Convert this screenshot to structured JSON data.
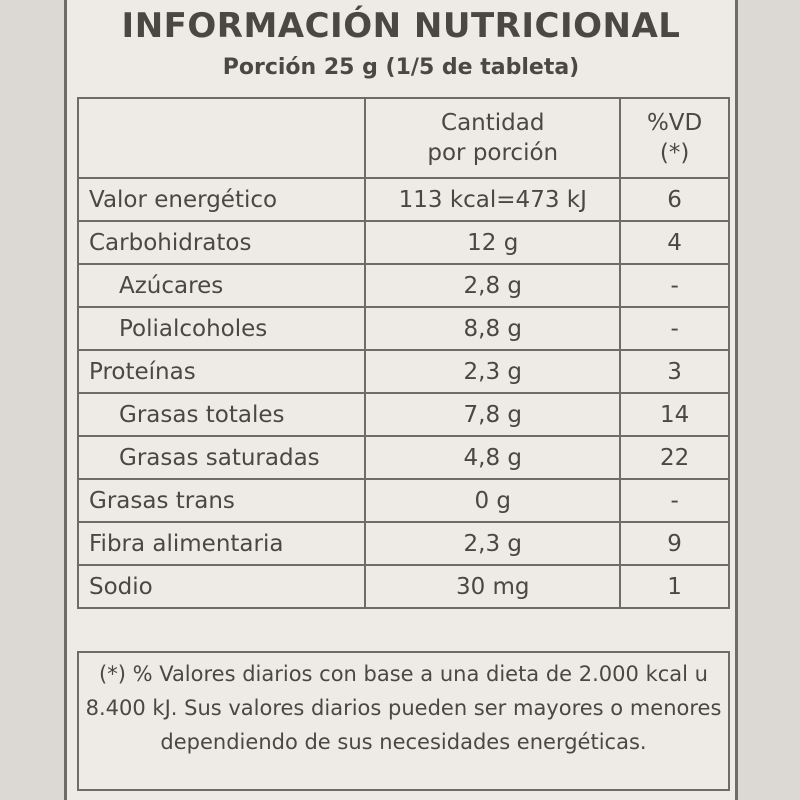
{
  "label": {
    "title": "INFORMACIÓN NUTRICIONAL",
    "serving": "Porción 25 g (1/5 de tableta)",
    "headers": {
      "amount_line1": "Cantidad",
      "amount_line2": "por porción",
      "dv_line1": "%VD",
      "dv_line2": "(*)"
    },
    "rows": [
      {
        "name": "Valor energético",
        "amount": "113 kcal=473 kJ",
        "dv": "6"
      },
      {
        "name": "Carbohidratos",
        "amount": "12 g",
        "dv": "4"
      },
      {
        "name": "Azúcares",
        "amount": "2,8 g",
        "dv": "-"
      },
      {
        "name": "Polialcoholes",
        "amount": "8,8 g",
        "dv": "-"
      },
      {
        "name": "Proteínas",
        "amount": "2,3 g",
        "dv": "3"
      },
      {
        "name": "Grasas totales",
        "amount": "7,8 g",
        "dv": "14"
      },
      {
        "name": "Grasas saturadas",
        "amount": "4,8 g",
        "dv": "22"
      },
      {
        "name": "Grasas trans",
        "amount": "0 g",
        "dv": "-"
      },
      {
        "name": "Fibra alimentaria",
        "amount": "2,3 g",
        "dv": "9"
      },
      {
        "name": "Sodio",
        "amount": "30 mg",
        "dv": "1"
      }
    ],
    "footnote": "(*) % Valores diarios con base a una dieta de 2.000 kcal u 8.400 kJ. Sus valores diarios pueden ser mayores o menores dependiendo de sus necesidades energéticas."
  },
  "colors": {
    "label_bg": "#eeebe7",
    "ink": "#4a4744",
    "rule": "#6e6b68"
  }
}
